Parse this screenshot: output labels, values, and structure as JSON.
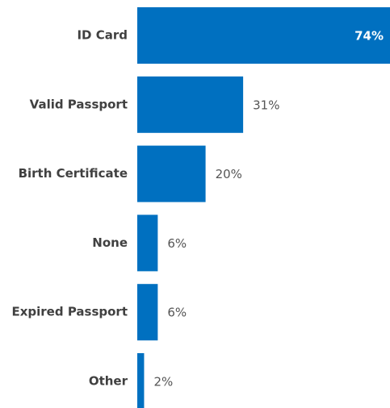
{
  "chart_data": {
    "type": "bar",
    "orientation": "horizontal",
    "categories": [
      "ID Card",
      "Valid Passport",
      "Birth Certificate",
      "None",
      "Expired Passport",
      "Other"
    ],
    "values": [
      74,
      31,
      20,
      6,
      6,
      2
    ],
    "value_labels": [
      "74%",
      "31%",
      "20%",
      "6%",
      "6%",
      "2%"
    ],
    "color": "#0070c0"
  }
}
